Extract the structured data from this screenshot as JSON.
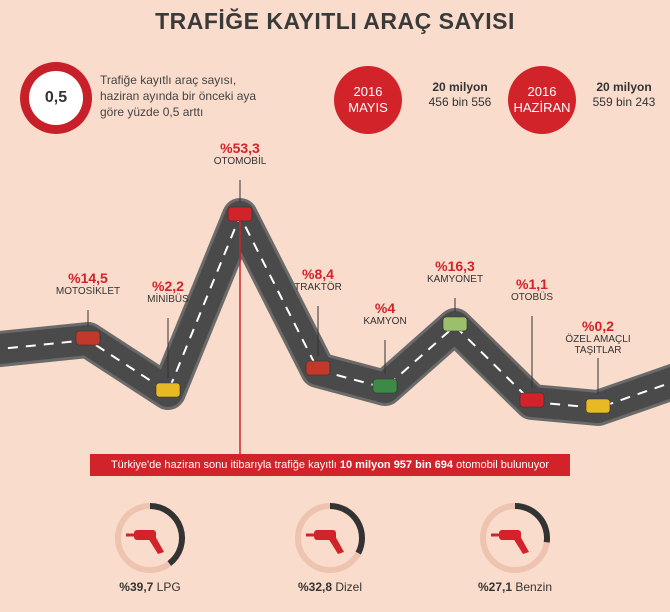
{
  "title": "TRAFİĞE KAYITLI ARAÇ SAYISI",
  "intro": {
    "badge": "0,5",
    "text": "Trafiğe kayıtlı araç sayısı, haziran ayında bir önceki aya göre yüzde 0,5 arttı"
  },
  "months": [
    {
      "year": "2016",
      "month": "MAYIS",
      "value_main": "20 milyon",
      "value_sub": "456 bin 556"
    },
    {
      "year": "2016",
      "month": "HAZİRAN",
      "value_main": "20 milyon",
      "value_sub": "559 bin 243"
    }
  ],
  "banner": {
    "prefix": "Türkiye'de haziran sonu itibarıyla trafiğe kayıtlı",
    "highlight": "10 milyon 957 bin 694",
    "suffix": "otomobil bulunuyor"
  },
  "chart_data": [
    {
      "type": "line",
      "categories": [
        "MOTOSİKLET",
        "MİNİBÜS",
        "OTOMOBİL",
        "TRAKTÖR",
        "KAMYON",
        "KAMYONET",
        "OTOBÜS",
        "ÖZEL AMAÇLI TAŞITLAR"
      ],
      "labels": [
        "%14,5",
        "%2,2",
        "%53,3",
        "%8,4",
        "%4",
        "%16,3",
        "%1,1",
        "%0,2"
      ],
      "values": [
        14.5,
        2.2,
        53.3,
        8.4,
        4,
        16.3,
        1.1,
        0.2
      ],
      "road_color": "#4a4a4a",
      "accent": "#d2232a"
    },
    {
      "type": "pie",
      "categories": [
        "LPG",
        "Dizel",
        "Benzin"
      ],
      "labels": [
        "%39,7",
        "%32,8",
        "%27,1"
      ],
      "values": [
        39.7,
        32.8,
        27.1
      ],
      "icon": "fuel-nozzle-icon"
    }
  ]
}
